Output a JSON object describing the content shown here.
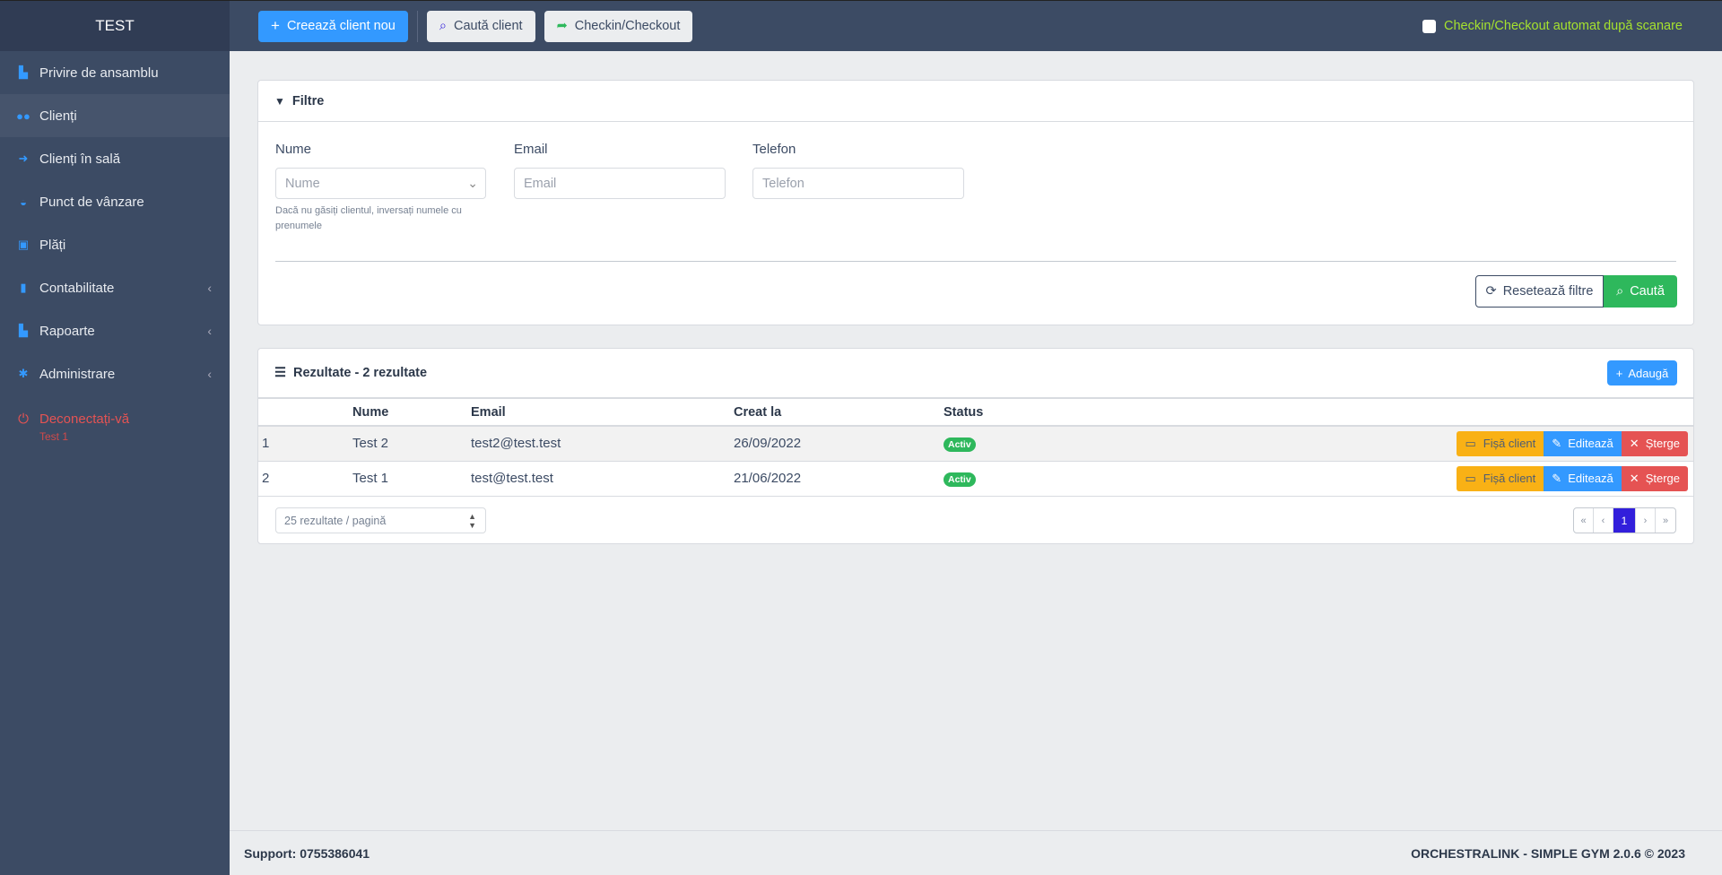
{
  "brand": "TEST",
  "sidebar": {
    "items": [
      {
        "label": "Privire de ansamblu",
        "icon": "chart-icon"
      },
      {
        "label": "Clienți",
        "icon": "users-icon",
        "active": true
      },
      {
        "label": "Clienți în sală",
        "icon": "sign-in-icon"
      },
      {
        "label": "Punct de vânzare",
        "icon": "basket-icon"
      },
      {
        "label": "Plăți",
        "icon": "money-icon"
      },
      {
        "label": "Contabilitate",
        "icon": "file-icon",
        "chevron": "‹"
      },
      {
        "label": "Rapoarte",
        "icon": "chart-icon",
        "chevron": "‹"
      },
      {
        "label": "Administrare",
        "icon": "gear-icon",
        "chevron": "‹"
      }
    ],
    "logout": {
      "label": "Deconectați-vă",
      "user": "Test 1"
    }
  },
  "topbar": {
    "create": "Creează client nou",
    "search": "Caută client",
    "checkin": "Checkin/Checkout",
    "auto_label": "Checkin/Checkout automat după scanare",
    "auto_checked": false
  },
  "filters": {
    "title": "Filtre",
    "name_label": "Nume",
    "name_placeholder": "Nume",
    "name_help": "Dacă nu găsiți clientul, inversați numele cu prenumele",
    "email_label": "Email",
    "email_placeholder": "Email",
    "phone_label": "Telefon",
    "phone_placeholder": "Telefon",
    "reset": "Resetează filtre",
    "search": "Caută"
  },
  "results": {
    "title": "Rezultate - 2 rezultate",
    "add": "Adaugă",
    "columns": [
      "",
      "Nume",
      "Email",
      "Creat la",
      "Status"
    ],
    "rows": [
      {
        "n": "1",
        "name": "Test 2",
        "email": "test2@test.test",
        "created": "26/09/2022",
        "status": "Activ"
      },
      {
        "n": "2",
        "name": "Test 1",
        "email": "test@test.test",
        "created": "21/06/2022",
        "status": "Activ"
      }
    ],
    "actions": {
      "card": "Fișă client",
      "edit": "Editează",
      "delete": "Șterge"
    },
    "per_page": "25 rezultate / pagină",
    "pagination": {
      "first": "«",
      "prev": "‹",
      "current": "1",
      "next": "›",
      "last": "»"
    }
  },
  "footer": {
    "support": "Support: 0755386041",
    "copyright": "ORCHESTRALINK - SIMPLE GYM 2.0.6 © 2023"
  },
  "colors": {
    "primary": "#3399ff",
    "success": "#2eb85c",
    "warning": "#f9b115",
    "danger": "#e55353",
    "sidebar": "#3c4b64",
    "page_active": "#321fdb"
  }
}
